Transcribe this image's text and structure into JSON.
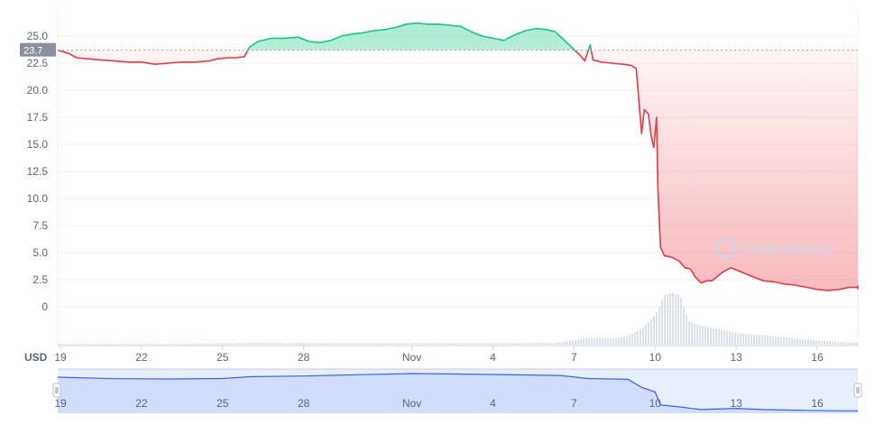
{
  "currency_label": "USD",
  "watermark": "CoinMarketCap",
  "current_price_label": "23.7",
  "colors": {
    "up": "#16c784",
    "down": "#ea3943",
    "navigator": "#3861fb",
    "volume": "#cfd6e4",
    "price_tag": "#8a919e"
  },
  "chart_data": {
    "type": "area",
    "baseline": 23.7,
    "ylim": [
      -2.5,
      28
    ],
    "y_ticks": [
      "0",
      "2.5",
      "5.0",
      "7.5",
      "10.0",
      "12.5",
      "15.0",
      "17.5",
      "20.0",
      "22.5",
      "25.0"
    ],
    "y_tick_values": [
      0,
      2.5,
      5,
      7.5,
      10,
      12.5,
      15,
      17.5,
      20,
      22.5,
      25
    ],
    "x_ticks": [
      "19",
      "22",
      "25",
      "28",
      "Nov",
      "4",
      "7",
      "10",
      "13",
      "16"
    ],
    "x_tick_days": [
      19,
      22,
      25,
      28,
      32,
      35,
      38,
      41,
      44,
      47
    ],
    "x_range_days": [
      18.9,
      48.5
    ],
    "series": [
      {
        "points": [
          [
            18.9,
            23.7
          ],
          [
            19.3,
            23.4
          ],
          [
            19.6,
            23.0
          ],
          [
            20.0,
            22.9
          ],
          [
            20.5,
            22.8
          ],
          [
            21.0,
            22.7
          ],
          [
            21.5,
            22.6
          ],
          [
            22.0,
            22.6
          ],
          [
            22.5,
            22.4
          ],
          [
            23.0,
            22.5
          ],
          [
            23.5,
            22.6
          ],
          [
            24.0,
            22.6
          ],
          [
            24.5,
            22.7
          ],
          [
            24.8,
            22.9
          ],
          [
            25.2,
            23.0
          ],
          [
            25.5,
            23.0
          ],
          [
            25.8,
            23.1
          ],
          [
            26.0,
            24.0
          ],
          [
            26.3,
            24.5
          ],
          [
            26.8,
            24.8
          ],
          [
            27.3,
            24.8
          ],
          [
            27.8,
            24.9
          ],
          [
            28.2,
            24.5
          ],
          [
            28.6,
            24.4
          ],
          [
            29.0,
            24.6
          ],
          [
            29.4,
            25.0
          ],
          [
            29.8,
            25.2
          ],
          [
            30.2,
            25.3
          ],
          [
            30.6,
            25.5
          ],
          [
            31.0,
            25.6
          ],
          [
            31.4,
            25.8
          ],
          [
            31.8,
            26.1
          ],
          [
            32.2,
            26.2
          ],
          [
            32.6,
            26.1
          ],
          [
            33.0,
            26.1
          ],
          [
            33.4,
            26.0
          ],
          [
            33.8,
            25.9
          ],
          [
            34.2,
            25.4
          ],
          [
            34.6,
            25.0
          ],
          [
            35.0,
            24.8
          ],
          [
            35.4,
            24.6
          ],
          [
            35.8,
            25.1
          ],
          [
            36.2,
            25.5
          ],
          [
            36.6,
            25.7
          ],
          [
            37.0,
            25.6
          ],
          [
            37.3,
            25.4
          ],
          [
            37.6,
            24.7
          ],
          [
            37.9,
            24.0
          ],
          [
            38.2,
            23.3
          ],
          [
            38.4,
            22.7
          ],
          [
            38.6,
            24.2
          ],
          [
            38.7,
            22.8
          ],
          [
            39.0,
            22.6
          ],
          [
            39.4,
            22.5
          ],
          [
            39.8,
            22.4
          ],
          [
            40.1,
            22.3
          ],
          [
            40.3,
            22.0
          ],
          [
            40.5,
            16.0
          ],
          [
            40.6,
            18.2
          ],
          [
            40.75,
            17.8
          ],
          [
            40.85,
            15.8
          ],
          [
            40.95,
            14.7
          ],
          [
            41.05,
            17.5
          ],
          [
            41.1,
            11.0
          ],
          [
            41.2,
            5.5
          ],
          [
            41.35,
            4.7
          ],
          [
            41.6,
            4.6
          ],
          [
            41.9,
            4.2
          ],
          [
            42.1,
            3.6
          ],
          [
            42.3,
            3.5
          ],
          [
            42.5,
            2.7
          ],
          [
            42.7,
            2.2
          ],
          [
            42.9,
            2.4
          ],
          [
            43.1,
            2.4
          ],
          [
            43.3,
            2.8
          ],
          [
            43.5,
            3.2
          ],
          [
            43.8,
            3.6
          ],
          [
            44.1,
            3.3
          ],
          [
            44.4,
            3.0
          ],
          [
            44.7,
            2.7
          ],
          [
            45.0,
            2.4
          ],
          [
            45.4,
            2.3
          ],
          [
            45.8,
            2.1
          ],
          [
            46.2,
            2.0
          ],
          [
            46.6,
            1.8
          ],
          [
            47.0,
            1.6
          ],
          [
            47.4,
            1.5
          ],
          [
            47.8,
            1.6
          ],
          [
            48.2,
            1.8
          ],
          [
            48.5,
            1.8
          ],
          [
            48.9,
            1.9
          ],
          [
            49.3,
            1.8
          ],
          [
            49.7,
            1.8
          ],
          [
            50.1,
            1.7
          ],
          [
            50.5,
            1.6
          ]
        ]
      }
    ],
    "volume": [
      [
        18.9,
        0.4
      ],
      [
        20.0,
        0.5
      ],
      [
        22.0,
        0.5
      ],
      [
        24.0,
        0.5
      ],
      [
        26.0,
        0.9
      ],
      [
        28.0,
        0.8
      ],
      [
        30.0,
        0.7
      ],
      [
        32.0,
        0.8
      ],
      [
        34.0,
        0.7
      ],
      [
        36.0,
        0.8
      ],
      [
        37.5,
        1.0
      ],
      [
        38.5,
        3.5
      ],
      [
        39.5,
        3.0
      ],
      [
        40.0,
        4.5
      ],
      [
        40.5,
        8.0
      ],
      [
        41.0,
        15.0
      ],
      [
        41.3,
        24.0
      ],
      [
        41.6,
        25.5
      ],
      [
        41.9,
        24.0
      ],
      [
        42.2,
        11.5
      ],
      [
        42.6,
        9.5
      ],
      [
        43.0,
        8.5
      ],
      [
        43.5,
        7.0
      ],
      [
        44.0,
        5.5
      ],
      [
        45.0,
        4.5
      ],
      [
        46.0,
        3.5
      ],
      [
        47.0,
        2.0
      ],
      [
        48.0,
        1.2
      ],
      [
        48.5,
        1.0
      ]
    ],
    "navigator_points": [
      [
        18.9,
        23.7
      ],
      [
        21.0,
        22.7
      ],
      [
        23.0,
        22.5
      ],
      [
        25.0,
        22.8
      ],
      [
        26.0,
        24.0
      ],
      [
        28.0,
        24.5
      ],
      [
        30.0,
        25.3
      ],
      [
        32.0,
        26.1
      ],
      [
        34.0,
        25.7
      ],
      [
        36.0,
        25.2
      ],
      [
        37.5,
        24.8
      ],
      [
        38.5,
        22.8
      ],
      [
        40.0,
        22.3
      ],
      [
        40.5,
        17.0
      ],
      [
        41.0,
        14.0
      ],
      [
        41.2,
        5.5
      ],
      [
        41.8,
        4.4
      ],
      [
        42.7,
        2.4
      ],
      [
        44.0,
        3.2
      ],
      [
        45.0,
        2.4
      ],
      [
        46.5,
        1.9
      ],
      [
        48.0,
        1.6
      ],
      [
        50.5,
        1.6
      ]
    ]
  }
}
